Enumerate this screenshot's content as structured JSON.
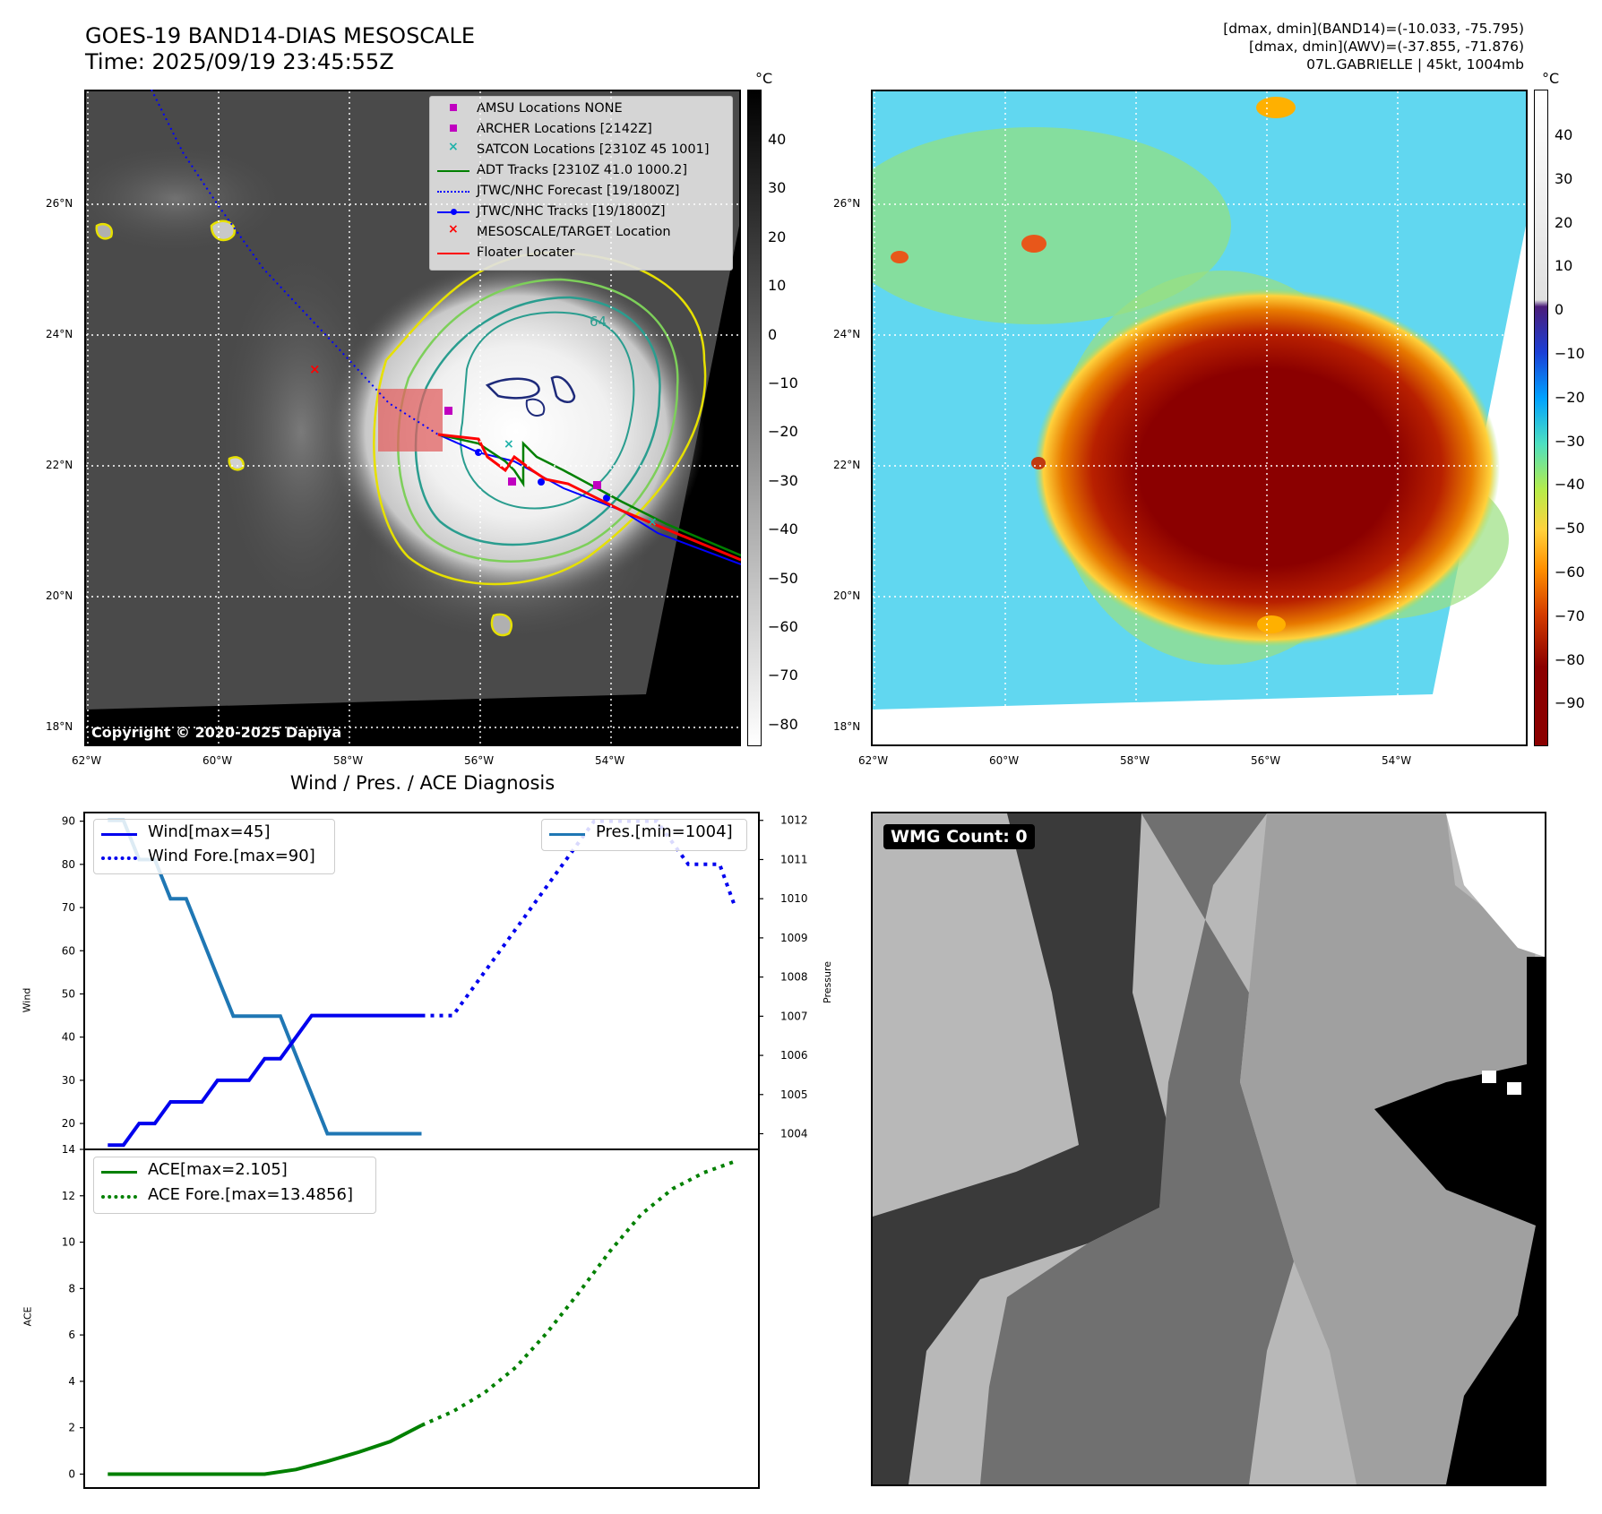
{
  "header": {
    "title_line1": "GOES-19 BAND14-DIAS MESOSCALE",
    "title_line2": "Time: 2025/09/19 23:45:55Z",
    "stat_line1": "[dmax, dmin](BAND14)=(-10.033, -75.795)",
    "stat_line2": "[dmax, dmin](AWV)=(-37.855, -71.876)",
    "stat_line3": "07L.GABRIELLE | 45kt, 1004mb"
  },
  "map": {
    "lat_labels": [
      "26°N",
      "24°N",
      "22°N",
      "20°N",
      "18°N"
    ],
    "lon_labels": [
      "62°W",
      "60°W",
      "58°W",
      "56°W",
      "54°W"
    ],
    "contour_label": "64",
    "copyright": "Copyright © 2020-2025 Dapiya",
    "legend": [
      {
        "label": "AMSU Locations NONE",
        "marker": "square",
        "color": "#c000c0"
      },
      {
        "label": "ARCHER Locations [2142Z]",
        "marker": "square",
        "color": "#c000c0"
      },
      {
        "label": "SATCON Locations [2310Z 45 1001]",
        "marker": "x",
        "color": "#20b2aa"
      },
      {
        "label": "ADT Tracks [2310Z 41.0 1000.2]",
        "marker": "line",
        "color": "#008000"
      },
      {
        "label": "JTWC/NHC Forecast [19/1800Z]",
        "marker": "dotted",
        "color": "#0000ff"
      },
      {
        "label": "JTWC/NHC Tracks [19/1800Z]",
        "marker": "line-dot",
        "color": "#0000ff"
      },
      {
        "label": "MESOSCALE/TARGET Location",
        "marker": "x",
        "color": "#ff0000"
      },
      {
        "label": "Floater Locater",
        "marker": "line",
        "color": "#ff0000"
      }
    ]
  },
  "colorbar_gray": {
    "unit": "°C",
    "ticks": [
      "40",
      "30",
      "20",
      "10",
      "0",
      "−10",
      "−20",
      "−30",
      "−40",
      "−50",
      "−60",
      "−70",
      "−80"
    ]
  },
  "colorbar_color": {
    "unit": "°C",
    "ticks": [
      "40",
      "30",
      "20",
      "10",
      "0",
      "−10",
      "−20",
      "−30",
      "−40",
      "−50",
      "−60",
      "−70",
      "−80",
      "−90"
    ]
  },
  "wmg": {
    "label": "WMG Count: 0"
  },
  "chart_data": [
    {
      "type": "line",
      "title": "Wind / Pres. / ACE Diagnosis",
      "ylabel": "Wind",
      "y2label": "Pressure",
      "ylim": [
        14,
        92
      ],
      "y2lim": [
        1003.6,
        1012.2
      ],
      "yticks": [
        20,
        30,
        40,
        50,
        60,
        70,
        80,
        90
      ],
      "y2ticks": [
        1004,
        1005,
        1006,
        1007,
        1008,
        1009,
        1010,
        1011,
        1012
      ],
      "x": [
        0,
        1,
        2,
        3,
        4,
        5,
        6,
        7,
        8,
        9,
        10,
        11,
        12,
        13,
        14,
        15,
        16,
        17,
        18,
        19,
        20,
        21,
        22,
        23,
        24,
        25,
        26,
        27,
        28,
        29,
        30,
        31,
        32,
        33,
        34,
        35,
        36,
        37,
        38,
        39,
        40
      ],
      "xlim": [
        -1.5,
        41.5
      ],
      "series": [
        {
          "name": "Wind[max=45]",
          "style": "solid",
          "color": "#0000ee",
          "axis": "left",
          "x": [
            0,
            1,
            2,
            3,
            4,
            5,
            6,
            7,
            8,
            9,
            10,
            11,
            12,
            13,
            14,
            15,
            16,
            17,
            18,
            19,
            20
          ],
          "values": [
            15,
            15,
            20,
            20,
            25,
            25,
            25,
            30,
            30,
            30,
            35,
            35,
            40,
            45,
            45,
            45,
            45,
            45,
            45,
            45,
            45
          ]
        },
        {
          "name": "Wind Fore.[max=90]",
          "style": "dotted",
          "color": "#0000ee",
          "axis": "left",
          "x": [
            20,
            21,
            22,
            23,
            24,
            25,
            26,
            27,
            28,
            29,
            30,
            31,
            32,
            33,
            34,
            35,
            36,
            37,
            38,
            39,
            40
          ],
          "values": [
            45,
            45,
            45,
            50,
            55,
            60,
            65,
            70,
            75,
            80,
            85,
            90,
            90,
            90,
            90,
            90,
            85,
            80,
            80,
            80,
            70
          ]
        },
        {
          "name": "Pres.[min=1004]",
          "style": "solid",
          "color": "#1f77b4",
          "axis": "right",
          "x": [
            0,
            1,
            2,
            3,
            4,
            5,
            6,
            7,
            8,
            9,
            10,
            11,
            12,
            13,
            14,
            15,
            16,
            17,
            18,
            19,
            20
          ],
          "values": [
            1012,
            1012,
            1011,
            1011,
            1010,
            1010,
            1009,
            1008,
            1007,
            1007,
            1007,
            1007,
            1006,
            1005,
            1004,
            1004,
            1004,
            1004,
            1004,
            1004,
            1004
          ]
        }
      ]
    },
    {
      "type": "line",
      "ylabel": "ACE",
      "ylim": [
        -0.6,
        14.0
      ],
      "yticks": [
        0,
        2,
        4,
        6,
        8,
        10,
        12,
        14
      ],
      "xlim": [
        -1.5,
        41.5
      ],
      "series": [
        {
          "name": "ACE[max=2.105]",
          "style": "solid",
          "color": "#008000",
          "x": [
            0,
            2,
            4,
            6,
            8,
            10,
            12,
            14,
            16,
            18,
            20
          ],
          "values": [
            0,
            0,
            0,
            0,
            0,
            0,
            0.2,
            0.55,
            0.95,
            1.4,
            2.105
          ]
        },
        {
          "name": "ACE Fore.[max=13.4856]",
          "style": "dotted",
          "color": "#008000",
          "x": [
            20,
            22,
            24,
            26,
            28,
            30,
            32,
            34,
            36,
            38,
            40
          ],
          "values": [
            2.105,
            2.7,
            3.5,
            4.6,
            6.1,
            7.8,
            9.6,
            11.2,
            12.3,
            13.0,
            13.4856
          ]
        }
      ]
    }
  ]
}
